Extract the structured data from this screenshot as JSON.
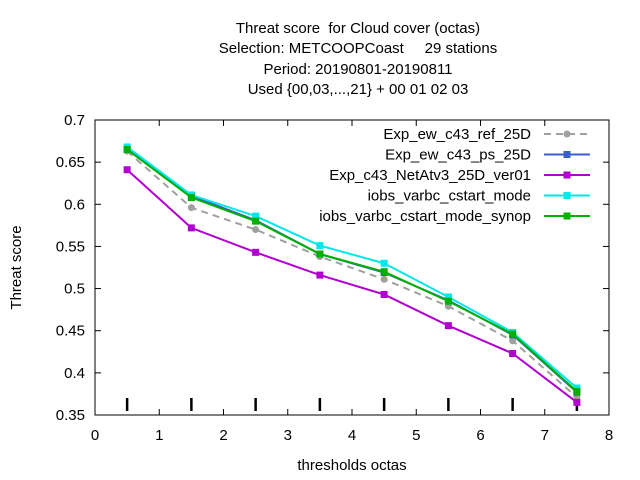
{
  "title_lines": [
    "Threat score  for Cloud cover (octas)",
    "Selection: METCOOPCoast     29 stations",
    "Period: 20190801-20190811",
    "Used {00,03,...,21} + 00 01 02 03"
  ],
  "chart_data": {
    "type": "line",
    "xlabel": "thresholds octas",
    "ylabel": "Threat score",
    "xlim": [
      0,
      8
    ],
    "ylim": [
      0.35,
      0.7
    ],
    "xticks": [
      0,
      1,
      2,
      3,
      4,
      5,
      6,
      7,
      8
    ],
    "yticks": [
      0.35,
      0.4,
      0.45,
      0.5,
      0.55,
      0.6,
      0.65,
      0.7
    ],
    "grid": false,
    "legend_position": "top-right",
    "x": [
      0.5,
      1.5,
      2.5,
      3.5,
      4.5,
      5.5,
      6.5,
      7.5
    ],
    "sample_markers": [
      0.5,
      1.5,
      2.5,
      3.5,
      4.5,
      5.5,
      6.5,
      7.5
    ],
    "series": [
      {
        "name": "Exp_ew_c43_ref_25D",
        "color": "#a0a0a0",
        "dashed": true,
        "values": [
          0.663,
          0.596,
          0.57,
          0.538,
          0.511,
          0.479,
          0.438,
          0.371
        ]
      },
      {
        "name": "Exp_ew_c43_ps_25D",
        "color": "#3a5fcd",
        "dashed": false,
        "values": [
          0.666,
          0.61,
          0.581,
          0.541,
          0.519,
          0.486,
          0.445,
          0.377
        ]
      },
      {
        "name": "Exp_c43_NetAtv3_25D_ver01",
        "color": "#b000d0",
        "dashed": false,
        "values": [
          0.641,
          0.572,
          0.543,
          0.516,
          0.493,
          0.456,
          0.423,
          0.365
        ]
      },
      {
        "name": "iobs_varbc_cstart_mode",
        "color": "#00e8e8",
        "dashed": false,
        "values": [
          0.668,
          0.611,
          0.586,
          0.551,
          0.53,
          0.49,
          0.448,
          0.382
        ]
      },
      {
        "name": "iobs_varbc_cstart_mode_synop",
        "color": "#00b000",
        "dashed": false,
        "values": [
          0.665,
          0.608,
          0.58,
          0.541,
          0.52,
          0.485,
          0.446,
          0.378
        ]
      }
    ]
  }
}
